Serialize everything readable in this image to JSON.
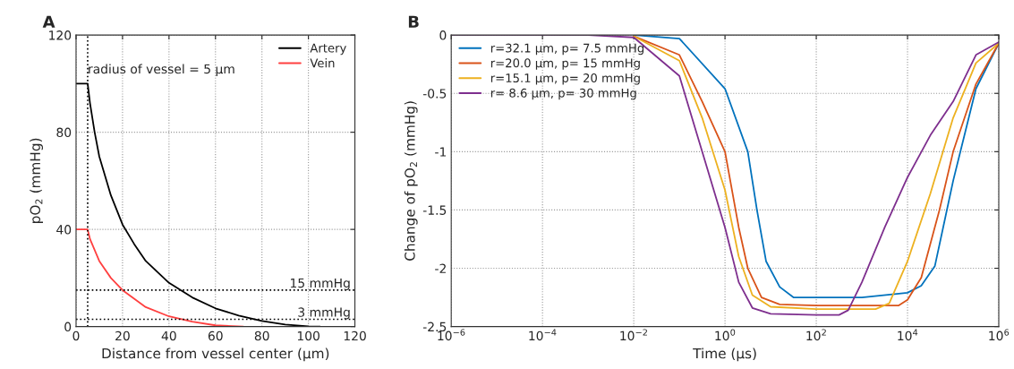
{
  "chart_data": [
    {
      "type": "line",
      "title": "A",
      "xlabel": "Distance from vessel center (μm)",
      "ylabel": "pO$_{2}$ (mmHg)",
      "xlim": [
        0,
        120
      ],
      "ylim": [
        0,
        120
      ],
      "xticks": [
        0,
        20,
        40,
        60,
        80,
        100,
        120
      ],
      "yticks": [
        0,
        40,
        80,
        120
      ],
      "grid": true,
      "legend": "top right",
      "series": [
        {
          "name": "Artery",
          "color": "#000000",
          "x": [
            0,
            5,
            6,
            8,
            10,
            15,
            20,
            25,
            30,
            40,
            50,
            60,
            70,
            80,
            90,
            100,
            105
          ],
          "values": [
            100,
            100,
            92,
            80,
            70,
            54,
            42,
            34,
            27,
            18,
            12,
            7.5,
            4.5,
            2.3,
            0.8,
            0.1,
            0
          ]
        },
        {
          "name": "Vein",
          "color": "#ff4040",
          "x": [
            0,
            5,
            6,
            10,
            15,
            20,
            30,
            40,
            50,
            60,
            72
          ],
          "values": [
            40,
            40,
            36,
            27,
            20,
            15,
            8,
            4.2,
            2,
            0.5,
            0
          ]
        }
      ],
      "ref_lines": [
        {
          "axis": "x",
          "value": 5,
          "label": "radius of vessel = 5 μm",
          "color": "#000000",
          "line_style": "dotted"
        },
        {
          "axis": "y",
          "value": 15,
          "label": "15 mmHg",
          "color": "#000000",
          "line_style": "dotted"
        },
        {
          "axis": "y",
          "value": 3,
          "label": "3 mmHg",
          "color": "#000000",
          "line_style": "dotted"
        }
      ]
    },
    {
      "type": "line",
      "title": "B",
      "xlabel": "Time (μs)",
      "ylabel": "Change of pO$_{2}$ (mmHg)",
      "log": "x",
      "xlim": [
        1e-06,
        1000000
      ],
      "ylim": [
        -2.5,
        0
      ],
      "xticks": [
        {
          "value": 1e-06,
          "label": "10$^{−6}$"
        },
        {
          "value": 0.0001,
          "label": "10$^{−4}$"
        },
        {
          "value": 0.01,
          "label": "10$^{−2}$"
        },
        {
          "value": 1,
          "label": "10$^{0}$"
        },
        {
          "value": 100,
          "label": "10$^{2}$"
        },
        {
          "value": 10000,
          "label": "10$^{4}$"
        },
        {
          "value": 1000000,
          "label": "10$^{6}$"
        }
      ],
      "yticks": [
        -2.5,
        -2,
        -1.5,
        -1,
        -0.5,
        0
      ],
      "grid": true,
      "legend": "top left",
      "series": [
        {
          "name": "r=32.1 μm, p= 7.5 mmHg",
          "color": "#0072bd",
          "x": [
            0.01,
            0.1,
            1,
            3.16,
            5.01,
            7.94,
            15.8,
            31.6,
            100,
            1000,
            10000,
            20000,
            39800,
            100000,
            316000,
            1000000
          ],
          "values": [
            0,
            -0.03,
            -0.46,
            -1.0,
            -1.5,
            -1.94,
            -2.16,
            -2.25,
            -2.25,
            -2.25,
            -2.21,
            -2.15,
            -1.98,
            -1.25,
            -0.46,
            -0.07
          ]
        },
        {
          "name": "r=20.0 μm, p= 15 mmHg",
          "color": "#d95319",
          "x": [
            0.01,
            0.1,
            0.316,
            1,
            2,
            3.16,
            6.31,
            15.8,
            100,
            1000,
            6310,
            10000,
            20000,
            50100,
            100000,
            316000,
            1000000
          ],
          "values": [
            -0.01,
            -0.17,
            -0.57,
            -1.0,
            -1.65,
            -2.0,
            -2.25,
            -2.31,
            -2.32,
            -2.32,
            -2.32,
            -2.27,
            -2.08,
            -1.5,
            -1.0,
            -0.42,
            -0.07
          ]
        },
        {
          "name": "r=15.1 μm, p= 20 mmHg",
          "color": "#edb120",
          "x": [
            0.01,
            0.1,
            0.316,
            1,
            2,
            3.98,
            10,
            100,
            1000,
            2000,
            3980,
            10000,
            31600,
            100000,
            316000,
            1000000
          ],
          "values": [
            -0.01,
            -0.22,
            -0.71,
            -1.33,
            -1.9,
            -2.23,
            -2.33,
            -2.35,
            -2.35,
            -2.35,
            -2.3,
            -1.94,
            -1.36,
            -0.71,
            -0.24,
            -0.07
          ]
        },
        {
          "name": "r= 8.6 μm, p= 30 mmHg",
          "color": "#7e2f8e",
          "x": [
            1e-06,
            0.001,
            0.01,
            0.1,
            0.316,
            1,
            2,
            3.98,
            10,
            100,
            316,
            501,
            1000,
            3160,
            10000,
            31600,
            100000,
            316000,
            1000000
          ],
          "values": [
            0,
            0,
            -0.02,
            -0.35,
            -1.0,
            -1.65,
            -2.12,
            -2.34,
            -2.39,
            -2.4,
            -2.4,
            -2.36,
            -2.12,
            -1.65,
            -1.22,
            -0.86,
            -0.57,
            -0.17,
            -0.06
          ]
        }
      ]
    }
  ]
}
